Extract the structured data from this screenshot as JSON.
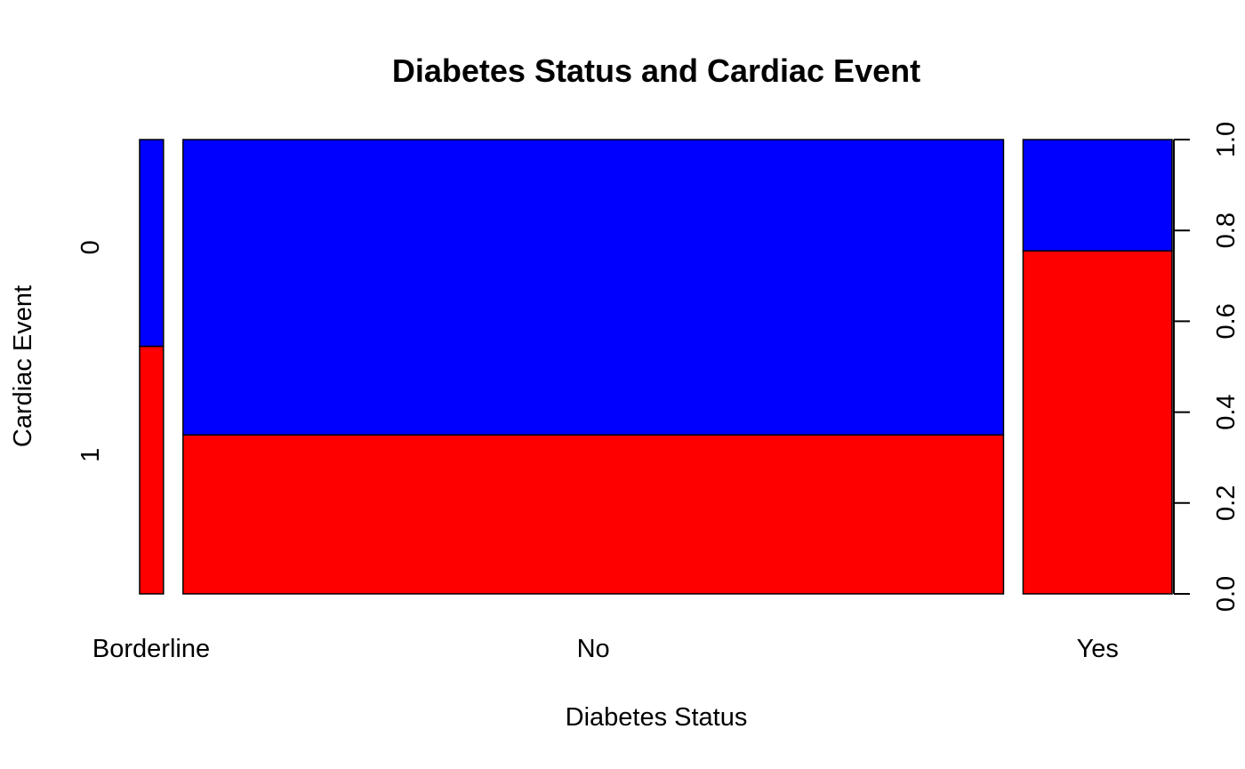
{
  "chart_data": {
    "type": "mosaic",
    "title": "Diabetes Status and Cardiac Event",
    "xlabel": "Diabetes Status",
    "ylabel": "Cardiac Event",
    "categories": [
      "Borderline",
      "No",
      "Yes"
    ],
    "category_widths": [
      0.024,
      0.826,
      0.15
    ],
    "levels": [
      "0",
      "1"
    ],
    "proportions": {
      "Borderline": {
        "0": 0.455,
        "1": 0.545
      },
      "No": {
        "0": 0.65,
        "1": 0.35
      },
      "Yes": {
        "0": 0.245,
        "1": 0.755
      }
    },
    "colors": {
      "0": "#0000FF",
      "1": "#FF0000"
    },
    "right_axis": {
      "ticks": [
        "0.0",
        "0.2",
        "0.4",
        "0.6",
        "0.8",
        "1.0"
      ],
      "values": [
        0.0,
        0.2,
        0.4,
        0.6,
        0.8,
        1.0
      ],
      "ylim": [
        0,
        1
      ]
    }
  }
}
